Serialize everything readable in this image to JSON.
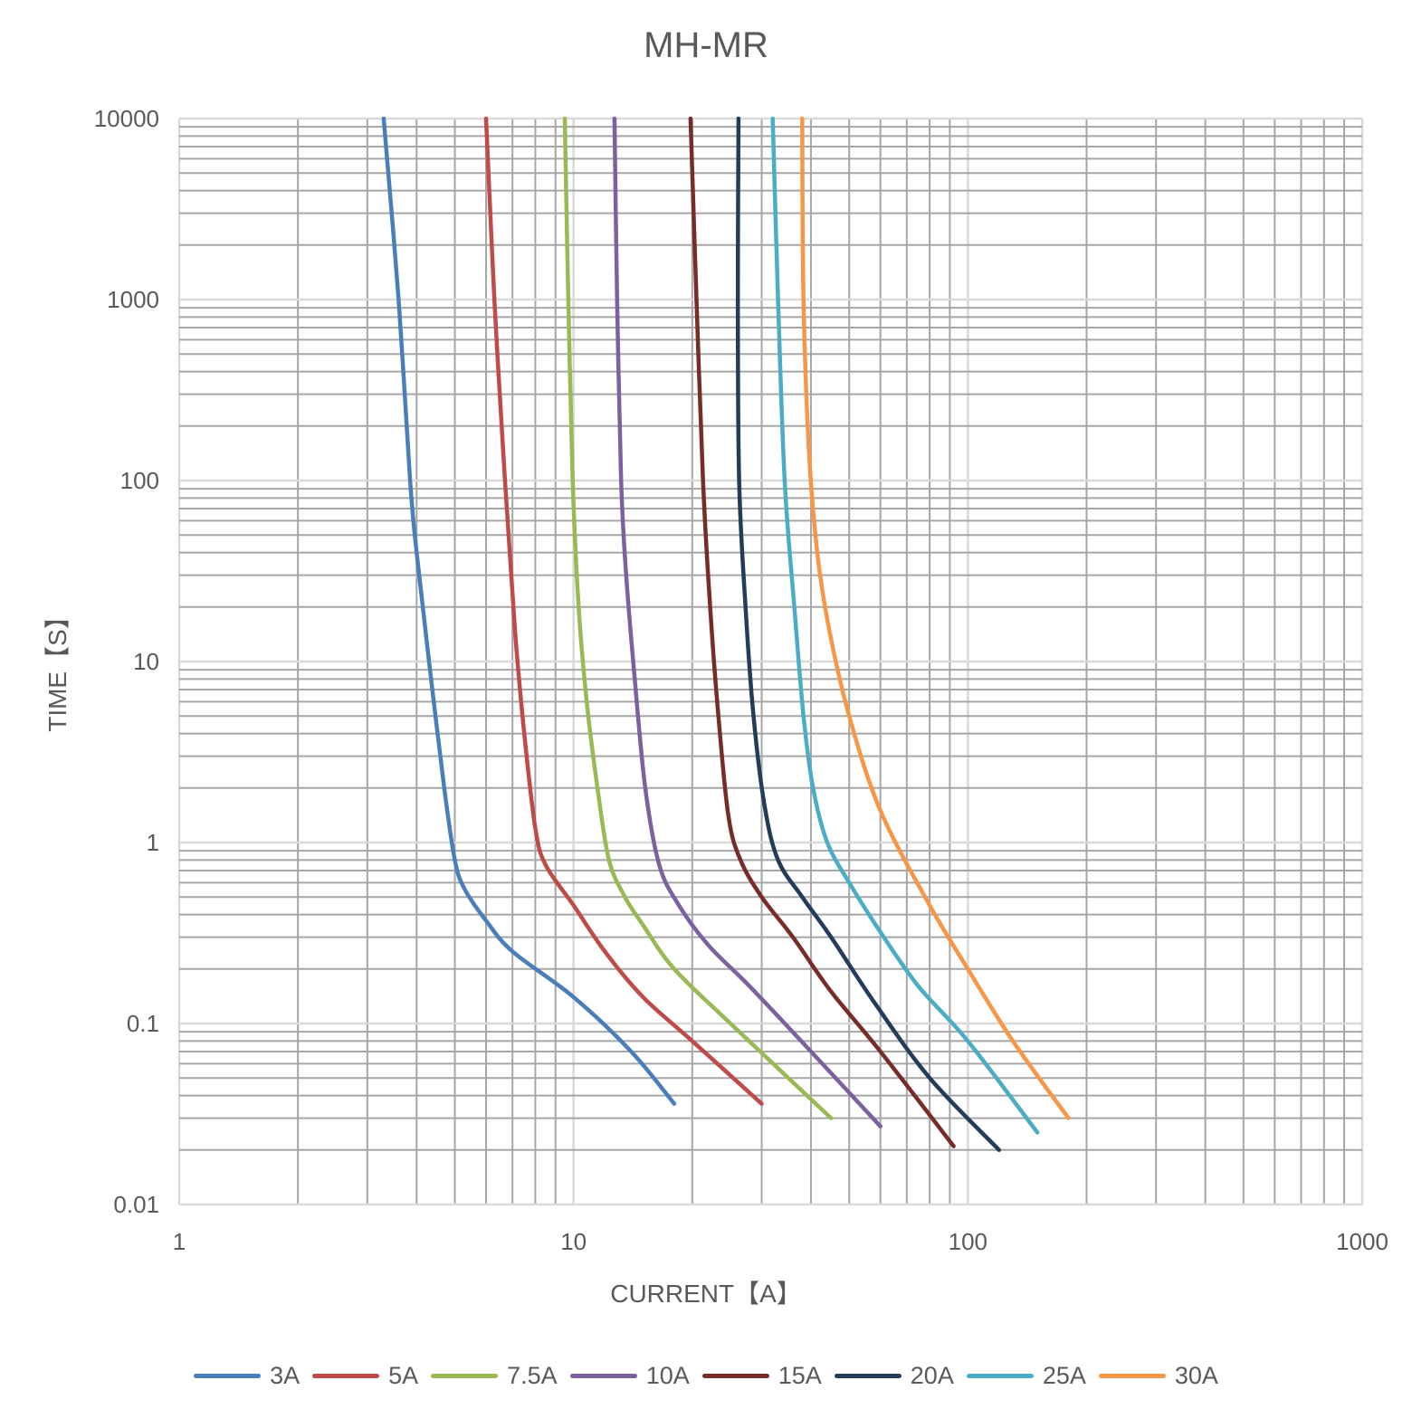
{
  "chart_data": {
    "type": "line",
    "title": "MH-MR",
    "xlabel": "CURRENT【A】",
    "ylabel": "TIME【S】",
    "x_scale": "log",
    "y_scale": "log",
    "xlim": [
      1,
      1000
    ],
    "ylim": [
      0.01,
      10000
    ],
    "x_tick_labels": [
      "1",
      "10",
      "100",
      "1000"
    ],
    "y_tick_labels": [
      "0.01",
      "0.1",
      "1",
      "10",
      "100",
      "1000",
      "10000"
    ],
    "grid": true,
    "legend_position": "bottom",
    "series": [
      {
        "name": "3A",
        "color": "#4a7ebb",
        "points": [
          [
            3.3,
            10000
          ],
          [
            3.6,
            1000
          ],
          [
            3.85,
            100
          ],
          [
            4.0,
            40
          ],
          [
            4.3,
            10
          ],
          [
            4.7,
            2
          ],
          [
            5.0,
            0.8
          ],
          [
            5.3,
            0.55
          ],
          [
            6.0,
            0.37
          ],
          [
            7.0,
            0.25
          ],
          [
            10,
            0.14
          ],
          [
            14,
            0.07
          ],
          [
            18,
            0.036
          ]
        ]
      },
      {
        "name": "5A",
        "color": "#be4b48",
        "points": [
          [
            6.0,
            10000
          ],
          [
            6.3,
            1000
          ],
          [
            6.7,
            100
          ],
          [
            7.1,
            15
          ],
          [
            7.5,
            4
          ],
          [
            8.0,
            1.2
          ],
          [
            8.5,
            0.75
          ],
          [
            10,
            0.45
          ],
          [
            12,
            0.25
          ],
          [
            15,
            0.14
          ],
          [
            20,
            0.08
          ],
          [
            30,
            0.036
          ]
        ]
      },
      {
        "name": "7.5A",
        "color": "#98b954",
        "points": [
          [
            9.5,
            10000
          ],
          [
            9.7,
            1000
          ],
          [
            9.95,
            100
          ],
          [
            10.3,
            20
          ],
          [
            10.8,
            6
          ],
          [
            11.5,
            2
          ],
          [
            12.3,
            0.8
          ],
          [
            13.5,
            0.5
          ],
          [
            15,
            0.35
          ],
          [
            18,
            0.2
          ],
          [
            25,
            0.1
          ],
          [
            45,
            0.03
          ]
        ]
      },
      {
        "name": "10A",
        "color": "#7d60a0",
        "points": [
          [
            12.7,
            10000
          ],
          [
            12.9,
            1000
          ],
          [
            13.2,
            100
          ],
          [
            13.6,
            30
          ],
          [
            14.3,
            8
          ],
          [
            15.2,
            2
          ],
          [
            16.5,
            0.75
          ],
          [
            18.5,
            0.45
          ],
          [
            22,
            0.27
          ],
          [
            28,
            0.16
          ],
          [
            40,
            0.07
          ],
          [
            60,
            0.027
          ]
        ]
      },
      {
        "name": "15A",
        "color": "#772c2a",
        "points": [
          [
            19.8,
            10000
          ],
          [
            20.5,
            1000
          ],
          [
            21.3,
            100
          ],
          [
            22.2,
            20
          ],
          [
            23.3,
            5
          ],
          [
            24.7,
            1.4
          ],
          [
            26.5,
            0.8
          ],
          [
            30,
            0.5
          ],
          [
            36,
            0.3
          ],
          [
            45,
            0.15
          ],
          [
            60,
            0.07
          ],
          [
            92,
            0.021
          ]
        ]
      },
      {
        "name": "20A",
        "color": "#253b5a",
        "points": [
          [
            26.2,
            10000
          ],
          [
            26.1,
            1000
          ],
          [
            26.3,
            100
          ],
          [
            27.3,
            20
          ],
          [
            28.6,
            5
          ],
          [
            30.5,
            1.6
          ],
          [
            33,
            0.8
          ],
          [
            38,
            0.5
          ],
          [
            45,
            0.3
          ],
          [
            58,
            0.13
          ],
          [
            80,
            0.05
          ],
          [
            120,
            0.02
          ]
        ]
      },
      {
        "name": "25A",
        "color": "#4bacc6",
        "points": [
          [
            32.0,
            10000
          ],
          [
            33.0,
            1000
          ],
          [
            34.3,
            100
          ],
          [
            36.3,
            20
          ],
          [
            38.3,
            5
          ],
          [
            40.5,
            2
          ],
          [
            44,
            1
          ],
          [
            50,
            0.6
          ],
          [
            60,
            0.32
          ],
          [
            75,
            0.16
          ],
          [
            100,
            0.08
          ],
          [
            150,
            0.025
          ]
        ]
      },
      {
        "name": "30A",
        "color": "#f79646",
        "points": [
          [
            38.0,
            10000
          ],
          [
            38.3,
            1000
          ],
          [
            39.5,
            150
          ],
          [
            41.5,
            40
          ],
          [
            44.5,
            15
          ],
          [
            50,
            5
          ],
          [
            60,
            1.5
          ],
          [
            80,
            0.45
          ],
          [
            100,
            0.2
          ],
          [
            130,
            0.08
          ],
          [
            180,
            0.03
          ]
        ]
      }
    ]
  }
}
